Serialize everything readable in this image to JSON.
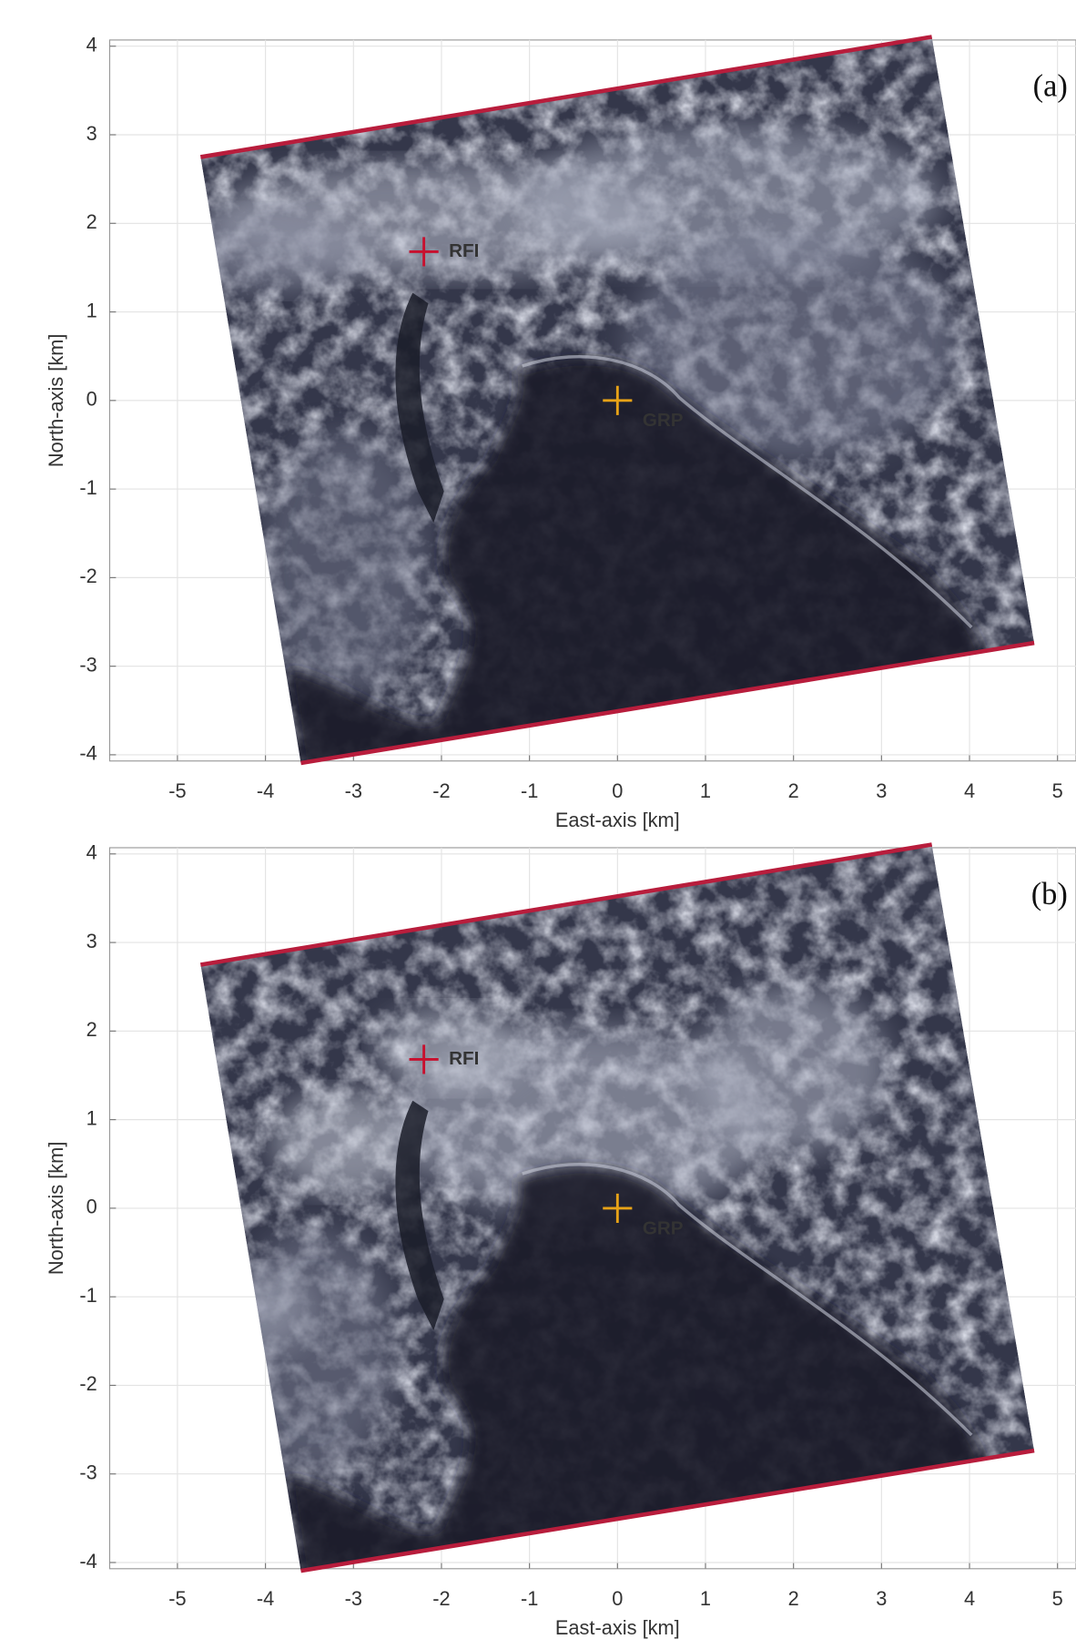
{
  "chart_data": [
    {
      "type": "image",
      "panel_label": "(a)",
      "xlabel": "East-axis [km]",
      "ylabel": "North-axis [km]",
      "xlim": [
        -5.77,
        5.21
      ],
      "ylim": [
        -4.07,
        4.07
      ],
      "xticks": [
        -5,
        -4,
        -3,
        -2,
        -1,
        0,
        1,
        2,
        3,
        4,
        5
      ],
      "yticks": [
        -4,
        -3,
        -2,
        -1,
        0,
        1,
        2,
        3,
        4
      ],
      "grid": true,
      "markers": [
        {
          "label": "RFI",
          "x": -2.2,
          "y": 1.68,
          "color": "#c8102e"
        },
        {
          "label": "GRP",
          "x": 0,
          "y": 0,
          "color": "#e8a317"
        }
      ]
    },
    {
      "type": "image",
      "panel_label": "(b)",
      "xlabel": "East-axis [km]",
      "ylabel": "North-axis [km]",
      "xlim": [
        -5.77,
        5.21
      ],
      "ylim": [
        -4.07,
        4.07
      ],
      "xticks": [
        -5,
        -4,
        -3,
        -2,
        -1,
        0,
        1,
        2,
        3,
        4,
        5
      ],
      "yticks": [
        -4,
        -3,
        -2,
        -1,
        0,
        1,
        2,
        3,
        4
      ],
      "grid": true,
      "markers": [
        {
          "label": "RFI",
          "x": -2.2,
          "y": 1.68,
          "color": "#c8102e"
        },
        {
          "label": "GRP",
          "x": 0,
          "y": 0,
          "color": "#e8a317"
        }
      ]
    }
  ]
}
